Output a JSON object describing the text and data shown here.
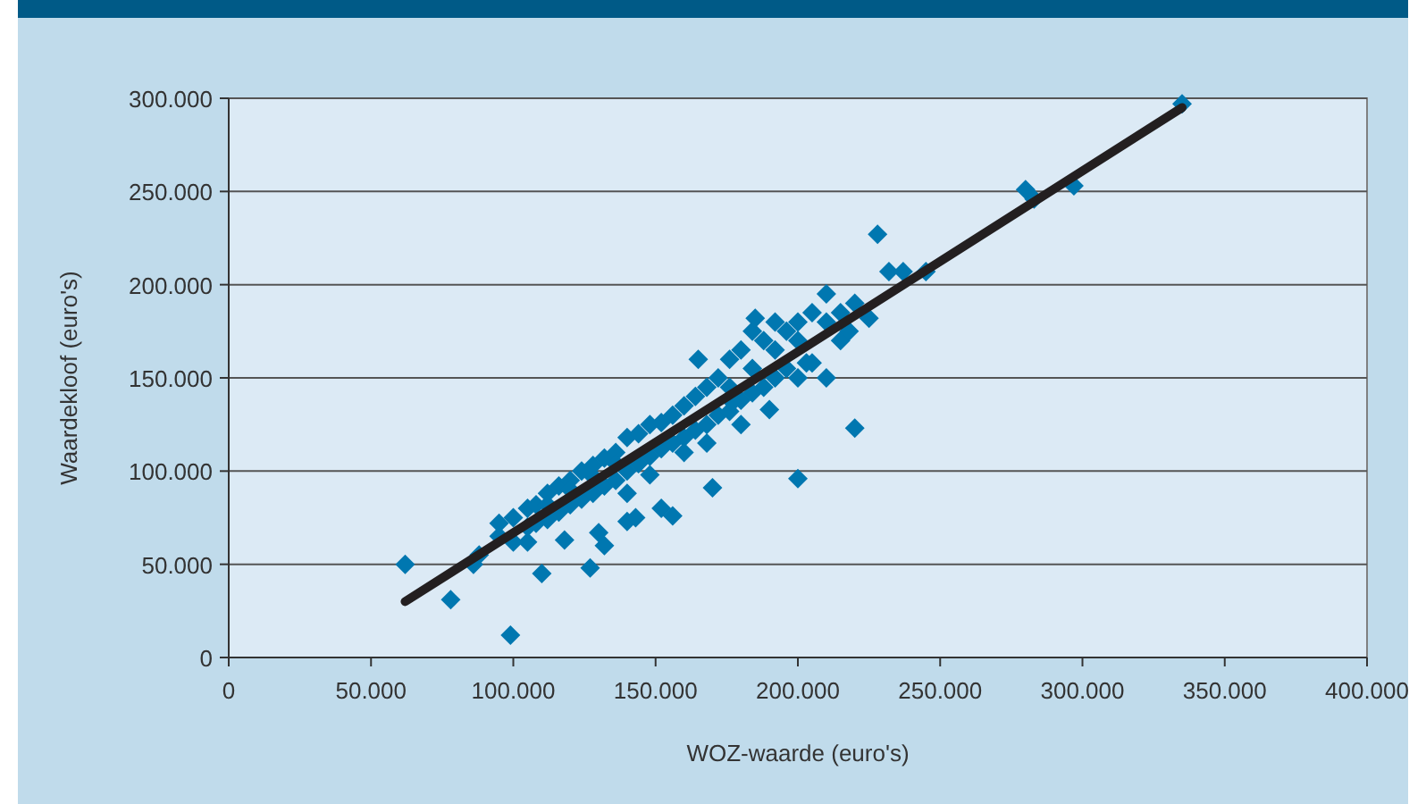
{
  "chart_data": {
    "type": "scatter",
    "xlabel": "WOZ-waarde (euro's)",
    "ylabel": "Waardekloof (euro's)",
    "xlim": [
      0,
      400000
    ],
    "ylim": [
      0,
      300000
    ],
    "xticks": [
      0,
      {
        "value": 50000,
        "label": "50.000"
      },
      {
        "value": 100000,
        "label": "100.000"
      },
      {
        "value": 150000,
        "label": "150.000"
      },
      {
        "value": 200000,
        "label": "200.000"
      },
      {
        "value": 250000,
        "label": "250.000"
      },
      {
        "value": 300000,
        "label": "300.000"
      },
      {
        "value": 350000,
        "label": "350.000"
      },
      {
        "value": 400000,
        "label": "400.000"
      }
    ],
    "yticks": [
      0,
      {
        "value": 50000,
        "label": "50.000"
      },
      {
        "value": 100000,
        "label": "100.000"
      },
      {
        "value": 150000,
        "label": "150.000"
      },
      {
        "value": 200000,
        "label": "200.000"
      },
      {
        "value": 250000,
        "label": "250.000"
      },
      {
        "value": 300000,
        "label": "300.000"
      }
    ],
    "grid": "y",
    "marker": "diamond",
    "series": [
      {
        "color": "#0077b0",
        "x": [
          62000,
          78000,
          99000,
          88000,
          86000,
          127000,
          110000,
          118000,
          105000,
          200000,
          220000,
          228000,
          170000,
          280000,
          283000,
          297000,
          335000,
          232000,
          237000,
          245000,
          220000,
          210000,
          225000,
          140000,
          143000,
          152000,
          156000,
          132000,
          130000,
          95000,
          95000,
          100000,
          100000,
          105000,
          105000,
          108000,
          108000,
          112000,
          112000,
          112000,
          116000,
          116000,
          120000,
          120000,
          120000,
          124000,
          124000,
          128000,
          128000,
          128000,
          132000,
          132000,
          136000,
          136000,
          136000,
          140000,
          140000,
          140000,
          144000,
          144000,
          148000,
          148000,
          148000,
          152000,
          152000,
          156000,
          156000,
          160000,
          160000,
          160000,
          164000,
          164000,
          168000,
          168000,
          168000,
          172000,
          172000,
          176000,
          176000,
          176000,
          180000,
          180000,
          180000,
          184000,
          184000,
          184000,
          188000,
          188000,
          192000,
          192000,
          192000,
          196000,
          196000,
          200000,
          200000,
          200000,
          205000,
          205000,
          210000,
          210000,
          215000,
          215000,
          218000,
          185000,
          165000,
          177000,
          190000,
          203000
        ],
        "values": [
          50000,
          31000,
          12000,
          55000,
          50000,
          48000,
          45000,
          63000,
          62000,
          96000,
          123000,
          227000,
          91000,
          251000,
          246000,
          253000,
          297000,
          207000,
          207000,
          207000,
          190000,
          195000,
          182000,
          73000,
          75000,
          80000,
          76000,
          60000,
          67000,
          72000,
          65000,
          75000,
          62000,
          80000,
          70000,
          82000,
          72000,
          88000,
          74000,
          82000,
          92000,
          78000,
          95000,
          82000,
          90000,
          100000,
          85000,
          103000,
          88000,
          97000,
          107000,
          92000,
          110000,
          95000,
          104000,
          118000,
          100000,
          88000,
          120000,
          104000,
          125000,
          108000,
          98000,
          126000,
          112000,
          130000,
          115000,
          135000,
          118000,
          110000,
          140000,
          122000,
          145000,
          125000,
          115000,
          150000,
          130000,
          160000,
          145000,
          132000,
          165000,
          138000,
          125000,
          175000,
          155000,
          142000,
          170000,
          145000,
          180000,
          165000,
          150000,
          175000,
          155000,
          180000,
          170000,
          150000,
          185000,
          158000,
          180000,
          150000,
          185000,
          170000,
          175000,
          182000,
          160000,
          137000,
          133000,
          158000
        ]
      },
      {
        "type": "line",
        "color": "#231f20",
        "marker": "none",
        "x": [
          62000,
          335000
        ],
        "values": [
          30000,
          295000
        ]
      }
    ]
  }
}
